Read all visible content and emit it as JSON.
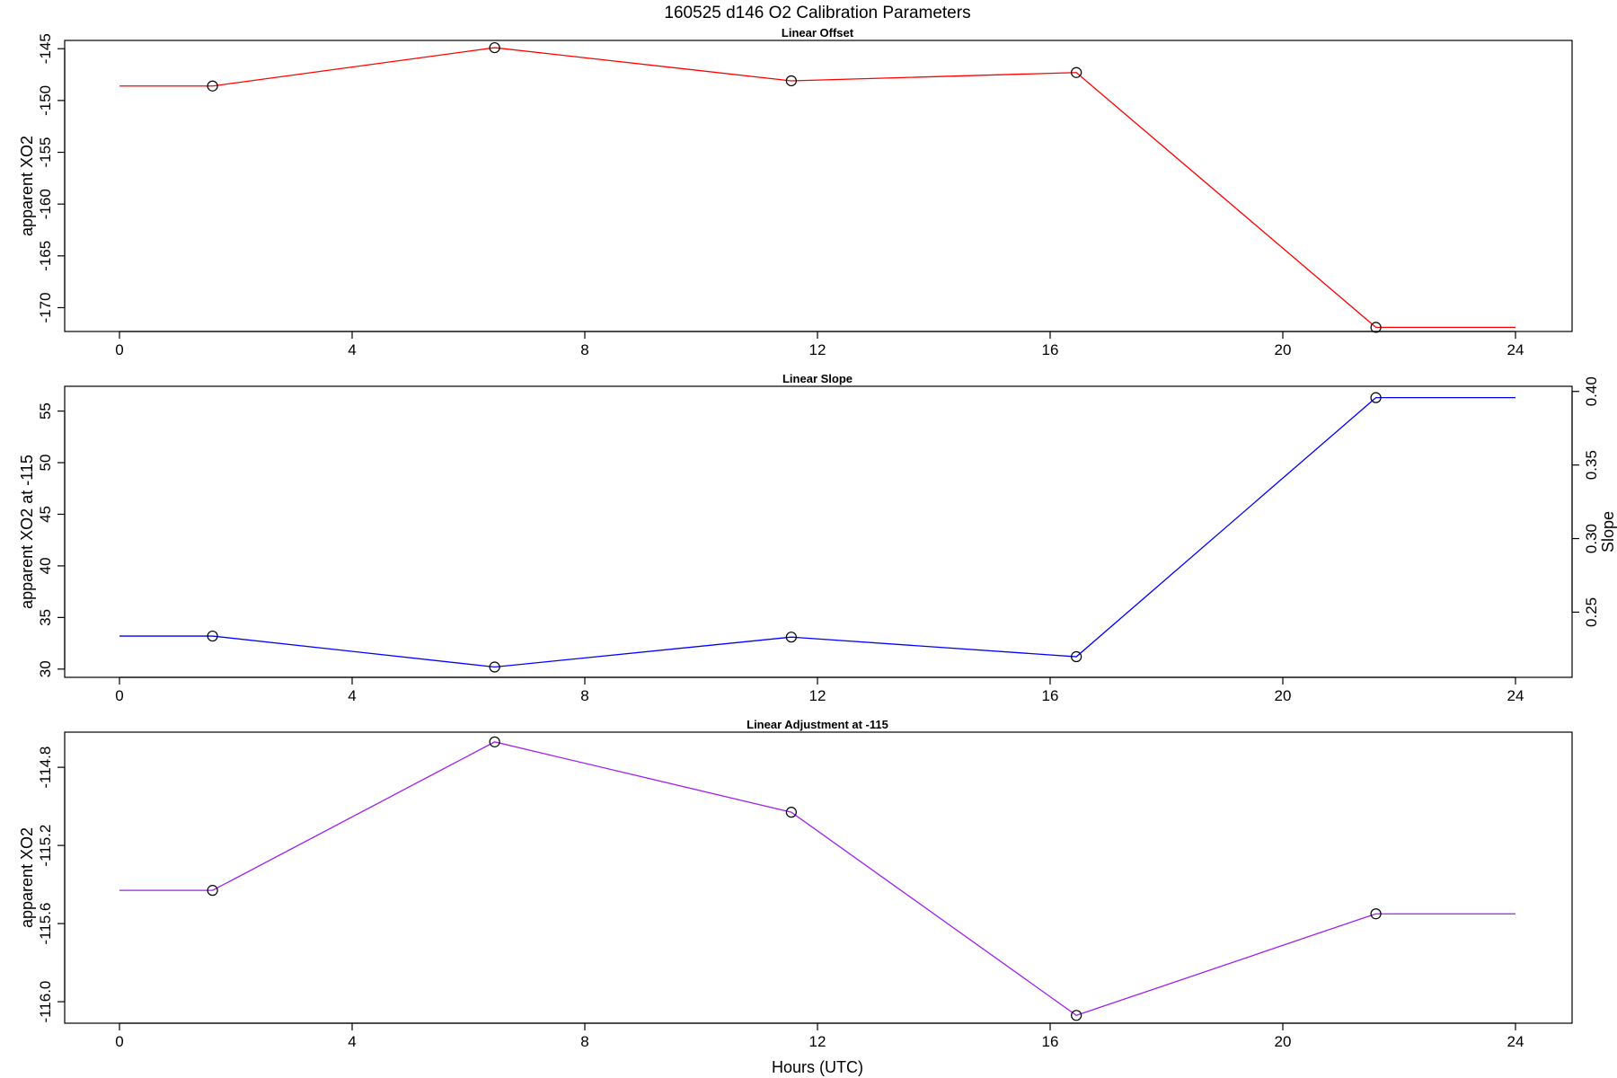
{
  "title": "160525   d146   O2 Calibration Parameters",
  "colors": {
    "offset": "#ff0000",
    "slope": "#0000ff",
    "adjustment": "#a020f0"
  },
  "chart_data": [
    {
      "type": "line",
      "title": "Linear Offset",
      "xlabel": "",
      "ylabel": "apparent XO2",
      "xlim": [
        0,
        24
      ],
      "x_ticks": [
        0,
        4,
        8,
        12,
        16,
        20,
        24
      ],
      "ylim": [
        -172.3,
        -144.2
      ],
      "y_ticks": [
        -170,
        -165,
        -160,
        -155,
        -150,
        -145
      ],
      "line_x": [
        0,
        1.6,
        6.45,
        11.55,
        16.45,
        21.6,
        24
      ],
      "line_y": [
        -148.6,
        -148.6,
        -144.9,
        -148.1,
        -147.3,
        -171.9,
        -171.9
      ],
      "points_x": [
        1.6,
        6.45,
        11.55,
        16.45,
        21.6
      ],
      "points_y": [
        -148.6,
        -144.9,
        -148.1,
        -147.3,
        -171.9
      ],
      "color": "offset"
    },
    {
      "type": "line",
      "title": "Linear Slope",
      "xlabel": "",
      "ylabel": "apparent XO2 at -115",
      "y2label": "Slope",
      "xlim": [
        0,
        24
      ],
      "x_ticks": [
        0,
        4,
        8,
        12,
        16,
        20,
        24
      ],
      "ylim": [
        29.2,
        57.4
      ],
      "y_ticks": [
        30,
        35,
        40,
        45,
        50,
        55
      ],
      "y2lim": [
        0.2057,
        0.4035
      ],
      "y2_ticks": [
        "0.25",
        "0.30",
        "0.35",
        "0.40"
      ],
      "y2_tick_values": [
        0.25,
        0.3,
        0.35,
        0.4
      ],
      "line_x": [
        0,
        1.6,
        6.45,
        11.55,
        16.45,
        21.6,
        24
      ],
      "line_y": [
        33.2,
        33.2,
        30.2,
        33.1,
        31.2,
        56.3,
        56.3
      ],
      "points_x": [
        1.6,
        6.45,
        11.55,
        16.45,
        21.6
      ],
      "points_y": [
        33.2,
        30.2,
        33.1,
        31.2,
        56.3
      ],
      "color": "slope"
    },
    {
      "type": "line",
      "title": "Linear Adjustment at -115",
      "xlabel": "Hours (UTC)",
      "ylabel": "apparent XO2",
      "xlim": [
        0,
        24
      ],
      "x_ticks": [
        0,
        4,
        8,
        12,
        16,
        20,
        24
      ],
      "ylim": [
        -116.11,
        -114.62
      ],
      "y_ticks": [
        "-116.0",
        "-115.6",
        "-115.2",
        "-114.8"
      ],
      "y_tick_values": [
        -116.0,
        -115.6,
        -115.2,
        -114.8
      ],
      "line_x": [
        0,
        1.6,
        6.45,
        11.55,
        16.45,
        21.6,
        24
      ],
      "line_y": [
        -115.43,
        -115.43,
        -114.67,
        -115.03,
        -116.07,
        -115.55,
        -115.55
      ],
      "points_x": [
        1.6,
        6.45,
        11.55,
        16.45,
        21.6
      ],
      "points_y": [
        -115.43,
        -114.67,
        -115.03,
        -116.07,
        -115.55
      ],
      "color": "adjustment"
    }
  ]
}
